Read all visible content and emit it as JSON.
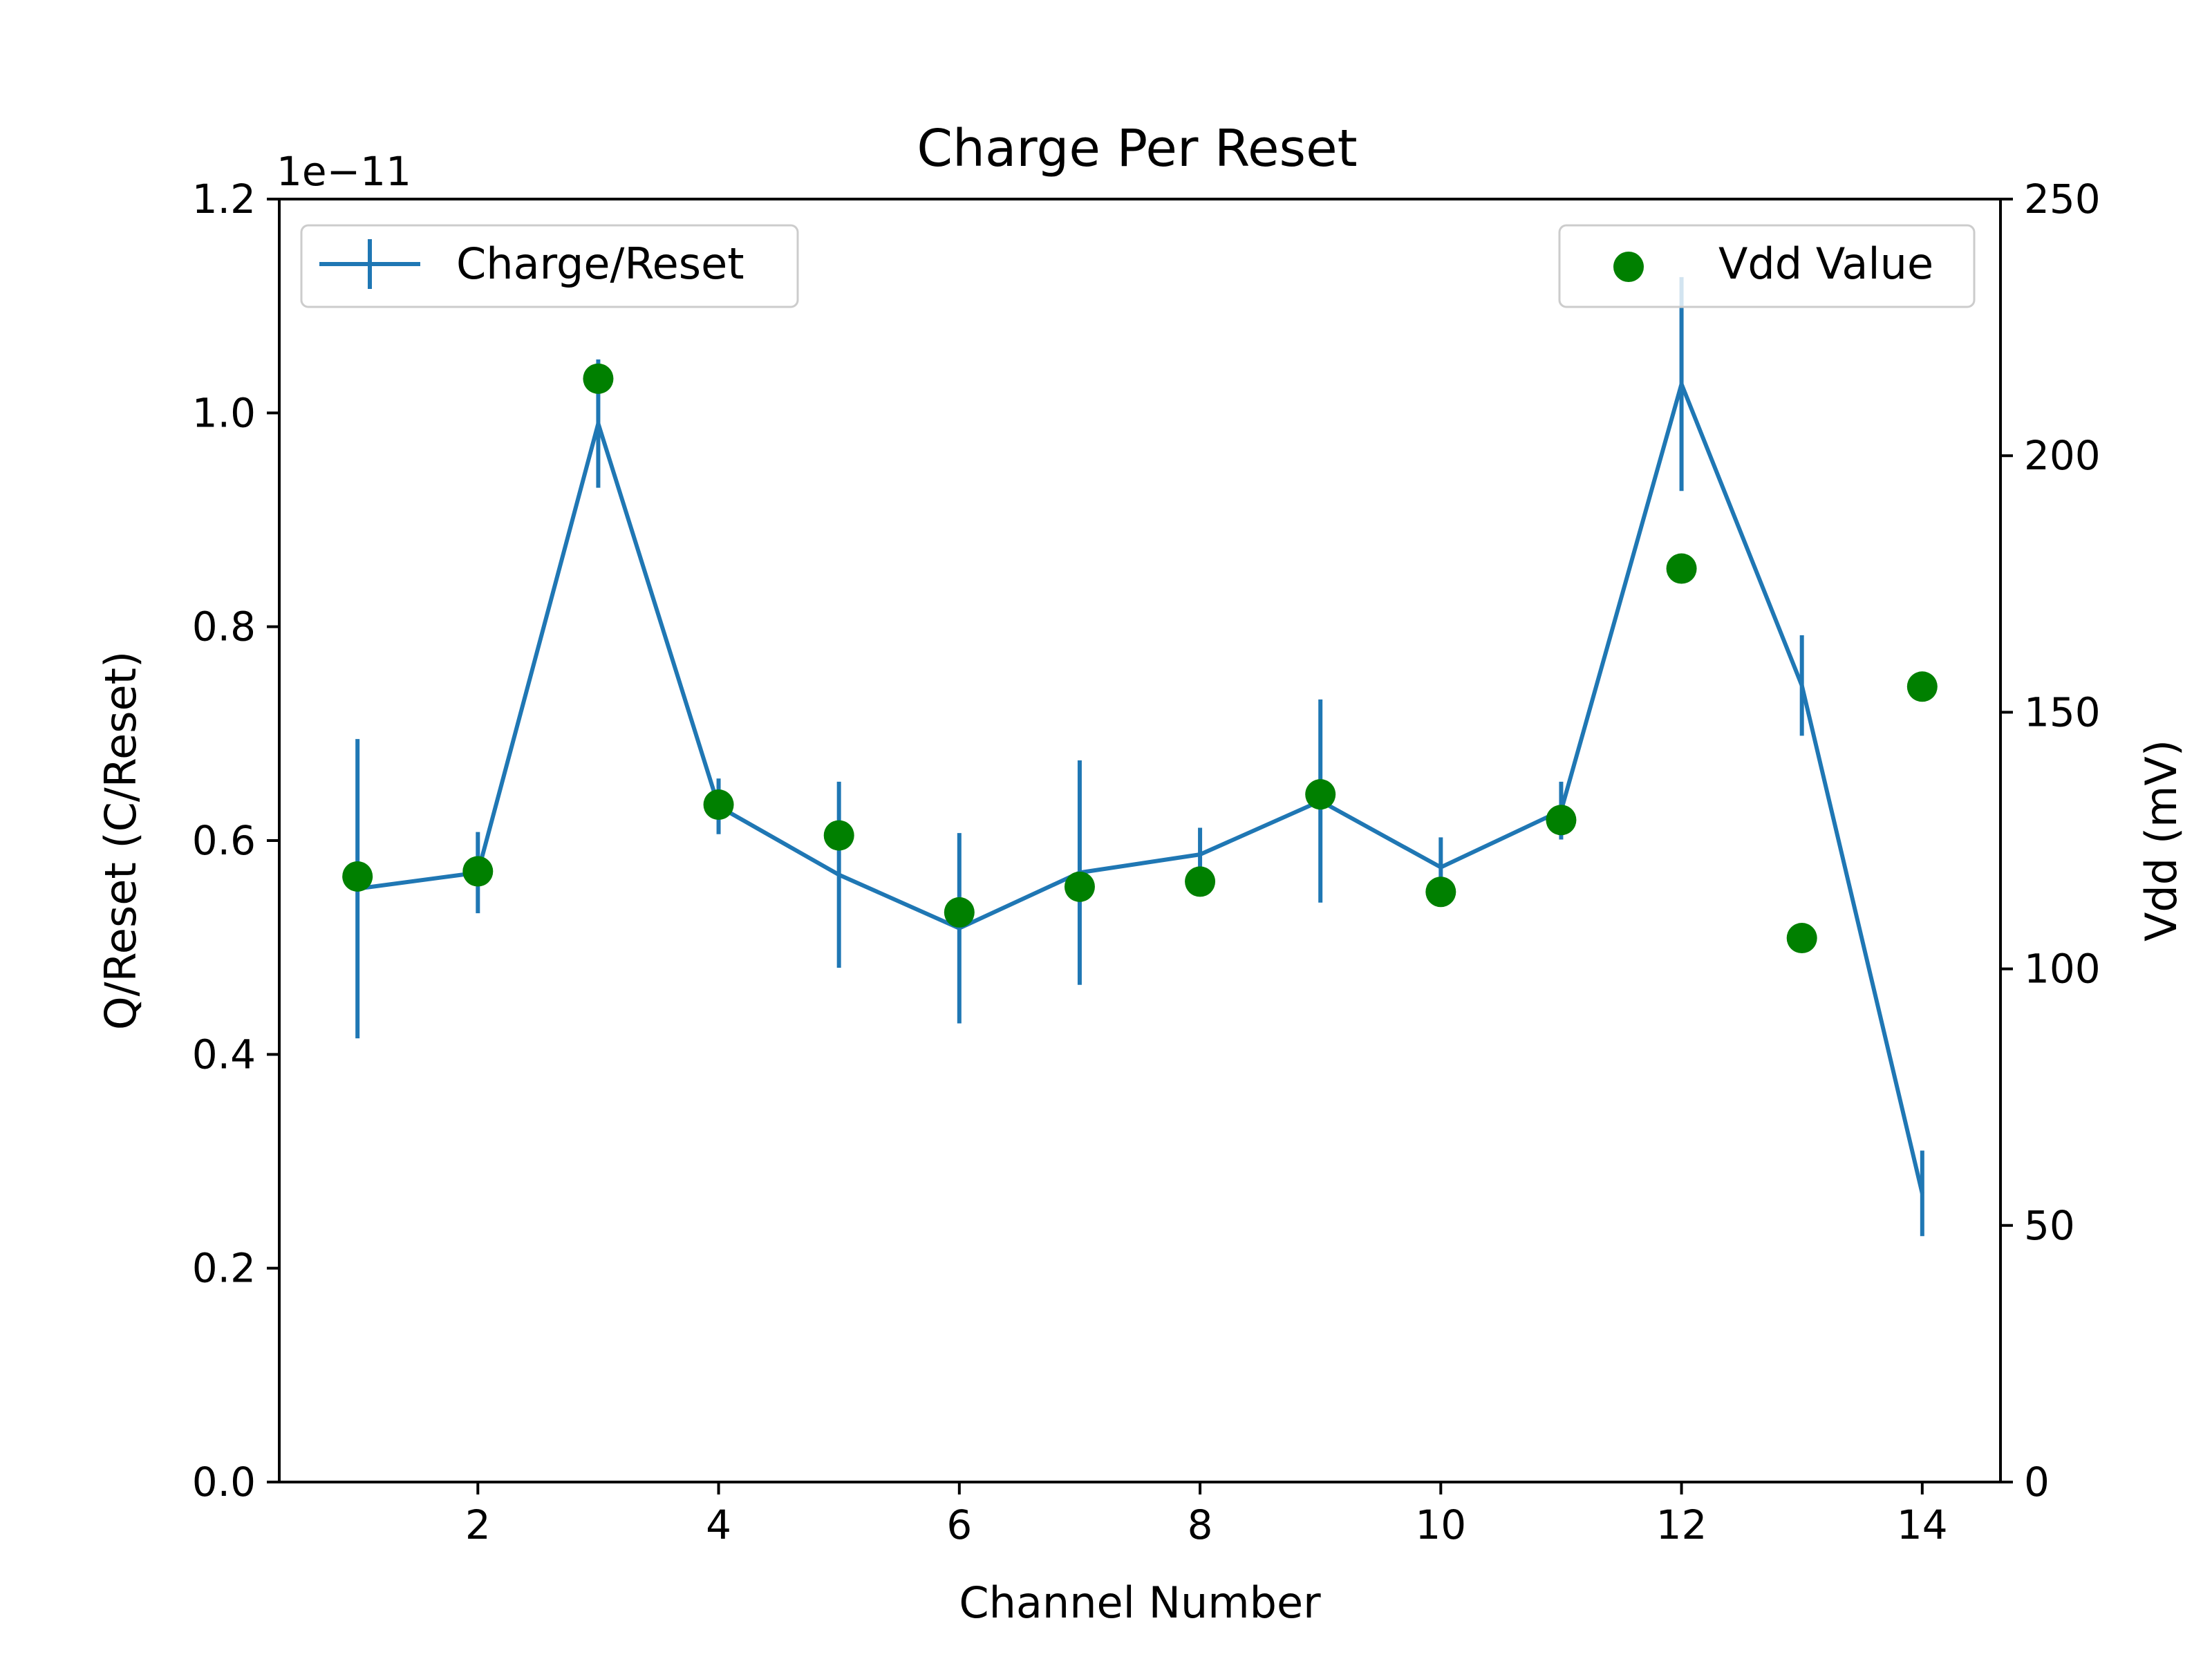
{
  "chart_data": {
    "type": "line",
    "title": "Charge Per Reset",
    "xlabel": "Channel Number",
    "ylabel": "Q/Reset (C/Reset)",
    "y2label": "Vdd (mV)",
    "y_offset_text": "1e−11",
    "xlim": [
      0.35,
      14.65
    ],
    "ylim": [
      0,
      1.2
    ],
    "y2lim": [
      0,
      250
    ],
    "x_ticks": [
      2,
      4,
      6,
      8,
      10,
      12,
      14
    ],
    "x_tick_labels": [
      "2",
      "4",
      "6",
      "8",
      "10",
      "12",
      "14"
    ],
    "y_ticks": [
      0,
      0.2,
      0.4,
      0.6,
      0.8,
      1.0,
      1.2
    ],
    "y_tick_labels": [
      "0.0",
      "0.2",
      "0.4",
      "0.6",
      "0.8",
      "1.0",
      "1.2"
    ],
    "y2_ticks": [
      0,
      50,
      100,
      150,
      200,
      250
    ],
    "y2_tick_labels": [
      "0",
      "50",
      "100",
      "150",
      "200",
      "250"
    ],
    "grid": false,
    "series": [
      {
        "name": "Charge/Reset",
        "type": "line-errorbar",
        "axis": "left",
        "color": "#1f77b4",
        "legend_position": "upper-left",
        "x": [
          1,
          2,
          3,
          4,
          5,
          6,
          7,
          8,
          9,
          10,
          11,
          12,
          13,
          14
        ],
        "y": [
          0.555,
          0.57,
          0.99,
          0.632,
          0.568,
          0.518,
          0.57,
          0.587,
          0.637,
          0.575,
          0.628,
          1.027,
          0.745,
          0.27
        ],
        "yerr": [
          0.14,
          0.038,
          0.06,
          0.026,
          0.087,
          0.089,
          0.105,
          0.025,
          0.095,
          0.028,
          0.027,
          0.1,
          0.047,
          0.04
        ]
      },
      {
        "name": "Vdd Value",
        "type": "scatter",
        "axis": "right",
        "color": "#008000",
        "legend_position": "upper-right",
        "x": [
          1,
          2,
          3,
          4,
          5,
          6,
          7,
          8,
          9,
          10,
          11,
          12,
          13,
          14
        ],
        "y": [
          118,
          119,
          215,
          132,
          126,
          111,
          116,
          117,
          134,
          115,
          129,
          178,
          106,
          155
        ]
      }
    ]
  }
}
